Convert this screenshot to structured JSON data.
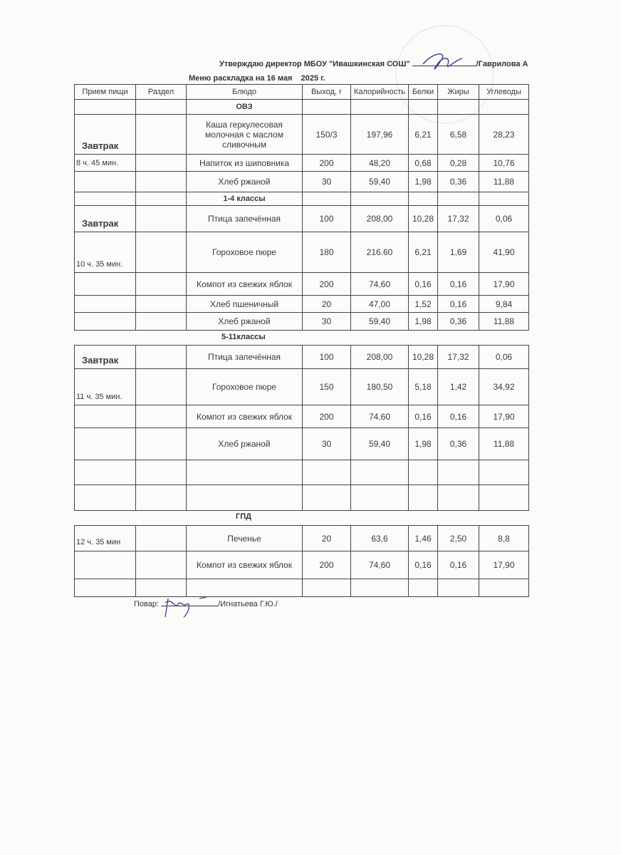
{
  "header": {
    "approval": "Утверждаю директор МБОУ \"Ивашкинская СОШ\"",
    "director": "/Гаврилова А",
    "title": "Меню раскладка на 16 мая    2025 г."
  },
  "columns": [
    "Прием пищи",
    "Раздел",
    "Блюдо",
    "Выход, г",
    "Калорийность",
    "Белки",
    "Жиры",
    "Углеводы"
  ],
  "sections": {
    "ovz": {
      "label": "ОВЗ",
      "meal": "Завтрак",
      "time": "8 ч. 45 мин.",
      "rows": [
        [
          "Каша геркулесовая молочная с маслом сливочным",
          "150/3",
          "197,96",
          "6,21",
          "6,58",
          "28,23"
        ],
        [
          "Напиток из шиповника",
          "200",
          "48,20",
          "0,68",
          "0,28",
          "10,76"
        ],
        [
          "Хлеб ржаной",
          "30",
          "59,40",
          "1,98",
          "0,36",
          "11,88"
        ]
      ]
    },
    "g14": {
      "label": "1-4 классы",
      "meal": "Завтрак",
      "time": "10 ч. 35 мин.",
      "rows": [
        [
          "Птица запечённая",
          "100",
          "208,00",
          "10,28",
          "17,32",
          "0,06"
        ],
        [
          "Гороховое пюре",
          "180",
          "216.60",
          "6,21",
          "1,69",
          "41,90"
        ],
        [
          "Компот из свежих яблок",
          "200",
          "74,60",
          "0,16",
          "0,16",
          "17,90"
        ],
        [
          "Хлеб пшеничный",
          "20",
          "47,00",
          "1,52",
          "0,16",
          "9,84"
        ],
        [
          "Хлеб ржаной",
          "30",
          "59,40",
          "1,98",
          "0,36",
          "11,88"
        ]
      ]
    },
    "g511": {
      "label": "5-11классы",
      "meal": "Завтрак",
      "time": "11 ч. 35 мин.",
      "rows": [
        [
          "Птица запечённая",
          "100",
          "208,00",
          "10,28",
          "17,32",
          "0,06"
        ],
        [
          "Гороховое пюре",
          "150",
          "180,50",
          "5,18",
          "1,42",
          "34,92"
        ],
        [
          "Компот из свежих яблок",
          "200",
          "74,60",
          "0,16",
          "0,16",
          "17,90"
        ],
        [
          "Хлеб ржаной",
          "30",
          "59,40",
          "1,98",
          "0,36",
          "11,88"
        ]
      ]
    },
    "gpd": {
      "label": "ГПД",
      "time": "12 ч. 35 мин",
      "rows": [
        [
          "Печенье",
          "20",
          "63,6",
          "1,46",
          "2,50",
          "8,8"
        ],
        [
          "Компот из свежих яблок",
          "200",
          "74,60",
          "0,16",
          "0,16",
          "17,90"
        ]
      ]
    }
  },
  "footer": {
    "cook_label": "Повар:",
    "cook_name": "/Игнатьева Г.Ю./"
  }
}
